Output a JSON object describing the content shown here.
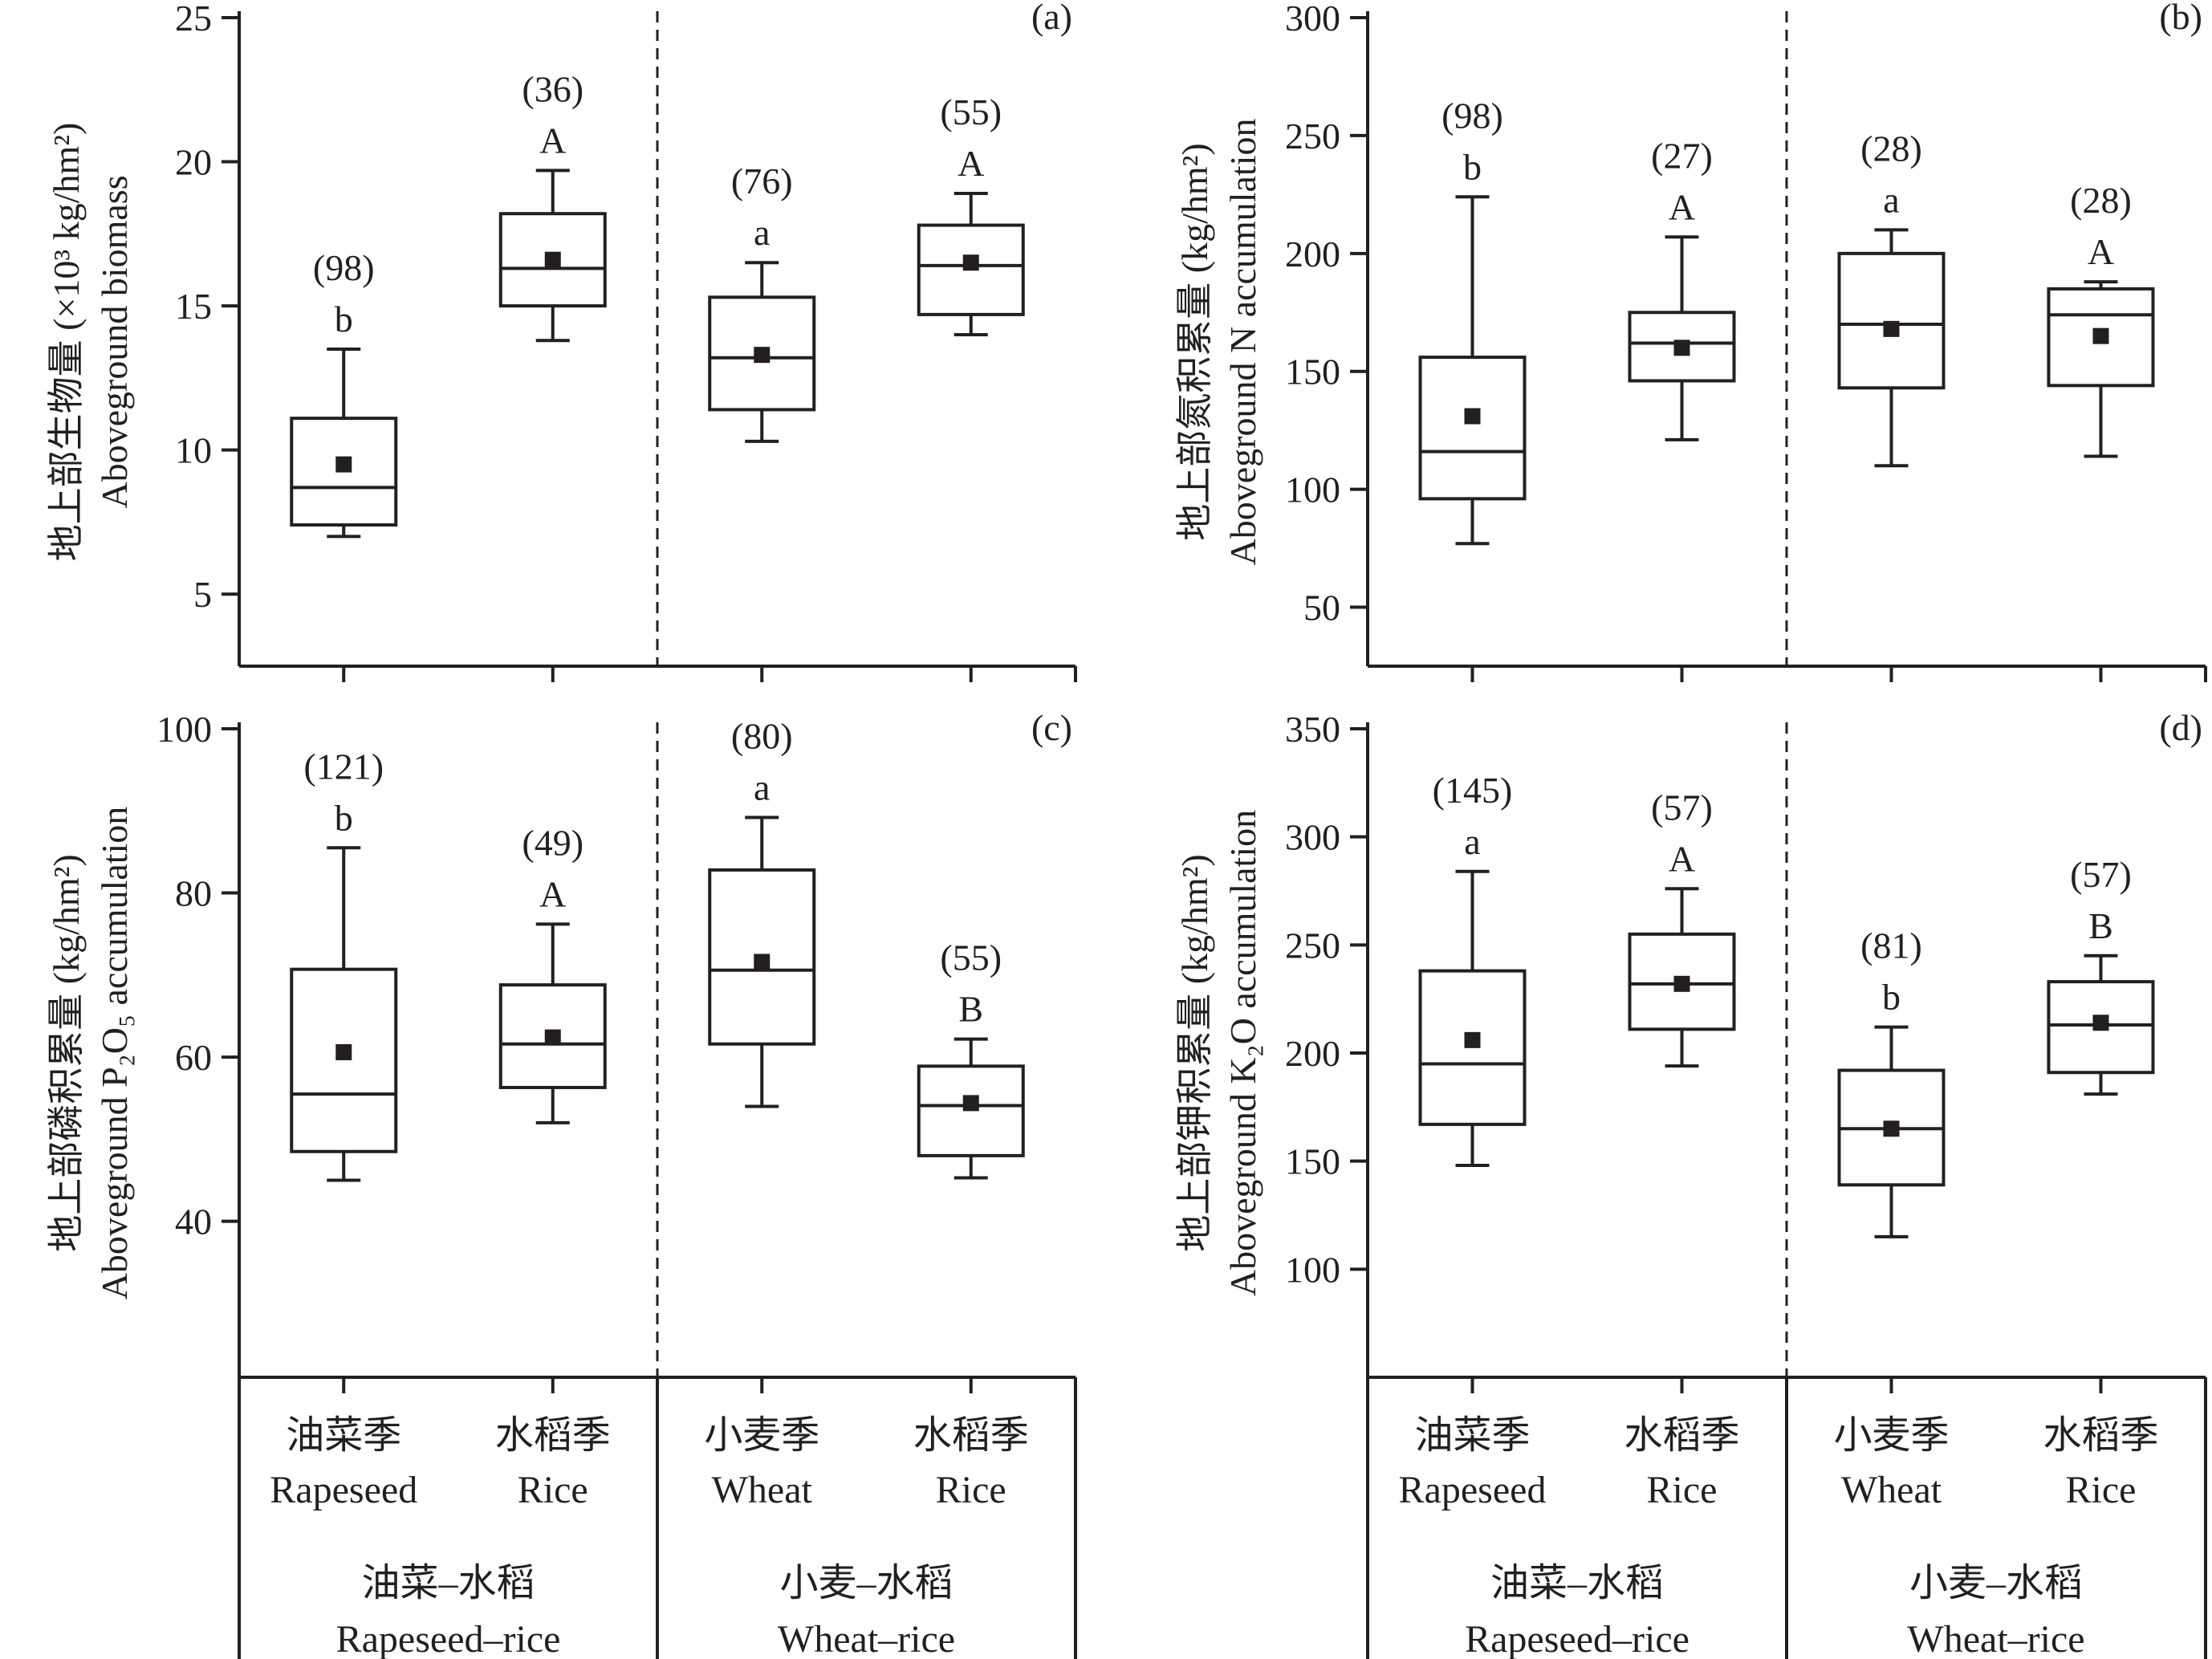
{
  "chart_data": [
    {
      "type": "box",
      "panel": "(a)",
      "ylabel_zh": "地上部生物量 (×10³ kg/hm²)",
      "ylabel_en": "Aboveground biomass",
      "ylim": [
        2.5,
        25
      ],
      "yticks": [
        5,
        10,
        15,
        20,
        25
      ],
      "systems": [
        {
          "name_zh": "油菜–水稻",
          "name_en": "Rapeseed–rice"
        },
        {
          "name_zh": "小麦–水稻",
          "name_en": "Wheat–rice"
        }
      ],
      "categories": [
        {
          "name_zh": "油菜季",
          "name_en": "Rapeseed"
        },
        {
          "name_zh": "水稻季",
          "name_en": "Rice"
        },
        {
          "name_zh": "小麦季",
          "name_en": "Wheat"
        },
        {
          "name_zh": "水稻季",
          "name_en": "Rice"
        }
      ],
      "boxes": [
        {
          "min": 7.0,
          "q1": 7.4,
          "median": 8.7,
          "q3": 11.1,
          "max": 13.5,
          "mean": 9.5,
          "n": "(98)",
          "letter": "b"
        },
        {
          "min": 13.8,
          "q1": 15.0,
          "median": 16.3,
          "q3": 18.2,
          "max": 19.7,
          "mean": 16.6,
          "n": "(36)",
          "letter": "A"
        },
        {
          "min": 10.3,
          "q1": 11.4,
          "median": 13.2,
          "q3": 15.3,
          "max": 16.5,
          "mean": 13.3,
          "n": "(76)",
          "letter": "a"
        },
        {
          "min": 14.0,
          "q1": 14.7,
          "median": 16.4,
          "q3": 17.8,
          "max": 18.9,
          "mean": 16.5,
          "n": "(55)",
          "letter": "A"
        }
      ]
    },
    {
      "type": "box",
      "panel": "(b)",
      "ylabel_zh": "地上部氮积累量 (kg/hm²)",
      "ylabel_en": "Aboveground N accumulation",
      "ylim": [
        25,
        300
      ],
      "yticks": [
        50,
        100,
        150,
        200,
        250,
        300
      ],
      "systems": [
        {
          "name_zh": "油菜–水稻",
          "name_en": "Rapeseed–rice"
        },
        {
          "name_zh": "小麦–水稻",
          "name_en": "Wheat–rice"
        }
      ],
      "categories": [
        {
          "name_zh": "油菜季",
          "name_en": "Rapeseed"
        },
        {
          "name_zh": "水稻季",
          "name_en": "Rice"
        },
        {
          "name_zh": "小麦季",
          "name_en": "Wheat"
        },
        {
          "name_zh": "水稻季",
          "name_en": "Rice"
        }
      ],
      "boxes": [
        {
          "min": 77,
          "q1": 96,
          "median": 116,
          "q3": 156,
          "max": 224,
          "mean": 131,
          "n": "(98)",
          "letter": "b"
        },
        {
          "min": 121,
          "q1": 146,
          "median": 162,
          "q3": 175,
          "max": 207,
          "mean": 160,
          "n": "(27)",
          "letter": "A"
        },
        {
          "min": 110,
          "q1": 143,
          "median": 170,
          "q3": 200,
          "max": 210,
          "mean": 168,
          "n": "(28)",
          "letter": "a"
        },
        {
          "min": 114,
          "q1": 144,
          "median": 174,
          "q3": 185,
          "max": 188,
          "mean": 165,
          "n": "(28)",
          "letter": "A"
        }
      ]
    },
    {
      "type": "box",
      "panel": "(c)",
      "ylabel_zh": "地上部磷积累量 (kg/hm²)",
      "ylabel_en": "Aboveground P₂O₅ accumulation",
      "ylim": [
        21,
        100
      ],
      "yticks": [
        40,
        60,
        80,
        100
      ],
      "systems": [
        {
          "name_zh": "油菜–水稻",
          "name_en": "Rapeseed–rice"
        },
        {
          "name_zh": "小麦–水稻",
          "name_en": "Wheat–rice"
        }
      ],
      "categories": [
        {
          "name_zh": "油菜季",
          "name_en": "Rapeseed"
        },
        {
          "name_zh": "水稻季",
          "name_en": "Rice"
        },
        {
          "name_zh": "小麦季",
          "name_en": "Wheat"
        },
        {
          "name_zh": "水稻季",
          "name_en": "Rice"
        }
      ],
      "boxes": [
        {
          "min": 45,
          "q1": 48.5,
          "median": 55.5,
          "q3": 70.7,
          "max": 85.5,
          "mean": 60.6,
          "n": "(121)",
          "letter": "b"
        },
        {
          "min": 52,
          "q1": 56.3,
          "median": 61.6,
          "q3": 68.8,
          "max": 76.2,
          "mean": 62.4,
          "n": "(49)",
          "letter": "A"
        },
        {
          "min": 54,
          "q1": 61.6,
          "median": 70.6,
          "q3": 82.8,
          "max": 89.2,
          "mean": 71.6,
          "n": "(80)",
          "letter": "a"
        },
        {
          "min": 45.3,
          "q1": 48,
          "median": 54.1,
          "q3": 58.9,
          "max": 62.2,
          "mean": 54.4,
          "n": "(55)",
          "letter": "B"
        }
      ]
    },
    {
      "type": "box",
      "panel": "(d)",
      "ylabel_zh": "地上部钾积累量 (kg/hm²)",
      "ylabel_en": "Aboveground K₂O accumulation",
      "ylim": [
        50,
        350
      ],
      "yticks": [
        100,
        150,
        200,
        250,
        300,
        350
      ],
      "systems": [
        {
          "name_zh": "油菜–水稻",
          "name_en": "Rapeseed–rice"
        },
        {
          "name_zh": "小麦–水稻",
          "name_en": "Wheat–rice"
        }
      ],
      "categories": [
        {
          "name_zh": "油菜季",
          "name_en": "Rapeseed"
        },
        {
          "name_zh": "水稻季",
          "name_en": "Rice"
        },
        {
          "name_zh": "小麦季",
          "name_en": "Wheat"
        },
        {
          "name_zh": "水稻季",
          "name_en": "Rice"
        }
      ],
      "boxes": [
        {
          "min": 148,
          "q1": 167,
          "median": 195,
          "q3": 238,
          "max": 284,
          "mean": 206,
          "n": "(145)",
          "letter": "a"
        },
        {
          "min": 194,
          "q1": 211,
          "median": 232,
          "q3": 255,
          "max": 276,
          "mean": 232,
          "n": "(57)",
          "letter": "A"
        },
        {
          "min": 115,
          "q1": 139,
          "median": 165,
          "q3": 192,
          "max": 212,
          "mean": 165,
          "n": "(81)",
          "letter": "b"
        },
        {
          "min": 181,
          "q1": 191,
          "median": 213,
          "q3": 233,
          "max": 245,
          "mean": 214,
          "n": "(57)",
          "letter": "B"
        }
      ]
    }
  ],
  "colors": {
    "ink": "#231f20",
    "background": "#ffffff"
  }
}
